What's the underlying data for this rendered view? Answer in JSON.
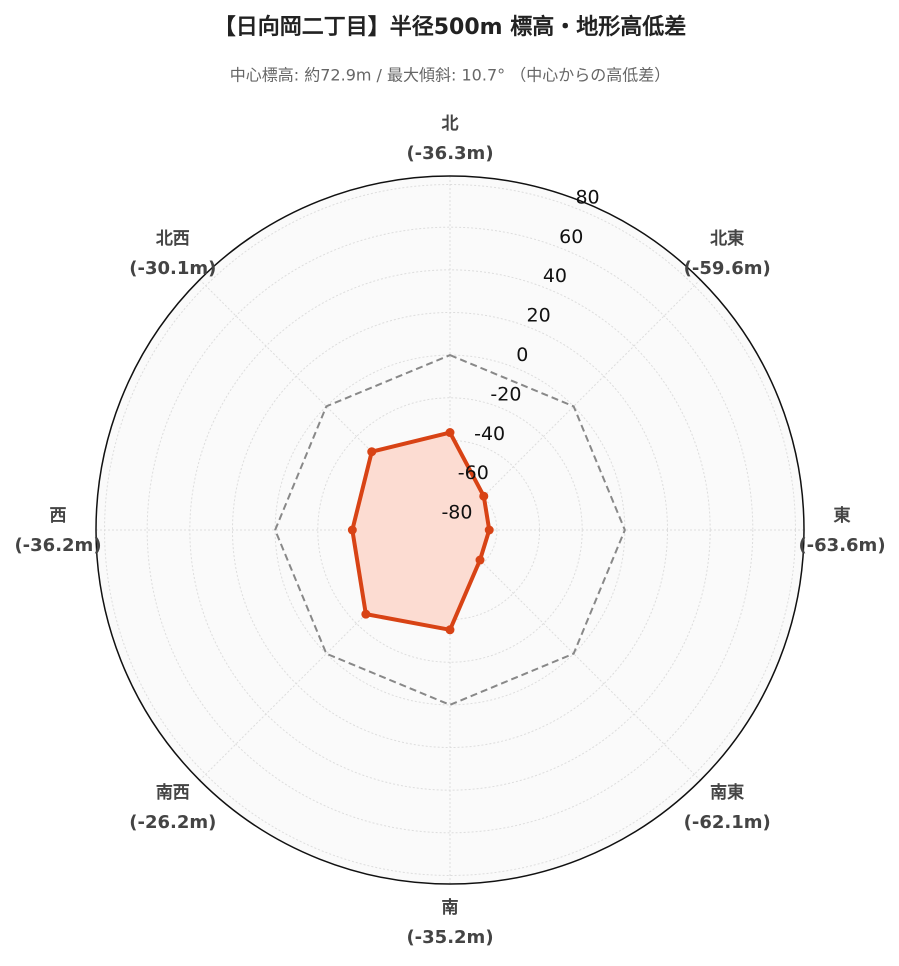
{
  "chart_data": {
    "type": "radar",
    "title": "【日向岡二丁目】半径500m 標高・地形高低差",
    "subtitle": "中心標高: 約72.9m / 最大傾斜: 10.7° （中心からの高低差）",
    "categories": [
      "北",
      "北東",
      "東",
      "南東",
      "南",
      "南西",
      "西",
      "北西"
    ],
    "series": [
      {
        "color": "#d84315",
        "fill": "#fcdcd2",
        "values": [
          -36.3,
          -59.6,
          -63.6,
          -62.1,
          -35.2,
          -26.2,
          -36.2,
          -30.1
        ],
        "value_labels": [
          "(-36.3m)",
          "(-59.6m)",
          "(-63.6m)",
          "(-62.1m)",
          "(-35.2m)",
          "(-26.2m)",
          "(-36.2m)",
          "(-30.1m)"
        ]
      }
    ],
    "reference_line": 0,
    "ylim": [
      -82,
      84
    ],
    "yticks": [
      -80,
      -60,
      -40,
      -20,
      0,
      20,
      40,
      60,
      80
    ],
    "grid": true
  }
}
